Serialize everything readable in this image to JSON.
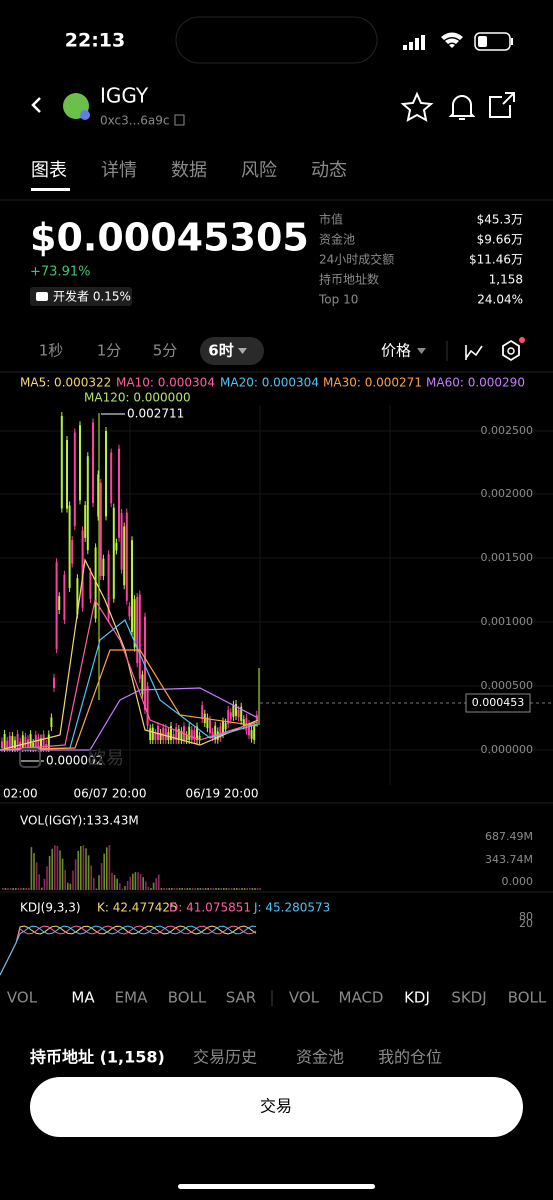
{
  "status": {
    "time": "22:13"
  },
  "header": {
    "name": "IGGY",
    "address": "0xc3...6a9c"
  },
  "tabs": [
    "图表",
    "详情",
    "数据",
    "风险",
    "动态"
  ],
  "price": {
    "value": "$0.00045305",
    "change": "+73.91%",
    "developer": "开发者 0.15%"
  },
  "stats": [
    [
      "市值",
      "$45.3万"
    ],
    [
      "资金池",
      "$9.66万"
    ],
    [
      "24小时成交额",
      "$11.46万"
    ],
    [
      "持币地址数",
      "1,158"
    ],
    [
      "Top 10",
      "24.04%"
    ]
  ],
  "intervals": [
    "1秒",
    "1分",
    "5分",
    "6时"
  ],
  "price_selector": "价格",
  "ma": [
    {
      "label": "MA5: 0.000322",
      "color": "#f5d76e"
    },
    {
      "label": "MA10: 0.000304",
      "color": "#ff5fa2"
    },
    {
      "label": "MA20: 0.000304",
      "color": "#4fc3f7"
    },
    {
      "label": "MA30: 0.000271",
      "color": "#ff9f43"
    },
    {
      "label": "MA60: 0.000290",
      "color": "#c77dff"
    },
    {
      "label": "MA120: 0.000000",
      "color": "#b6e36b"
    }
  ],
  "chart": {
    "y_labels": [
      "0.002500",
      "0.002000",
      "0.001500",
      "0.001000",
      "0.000500",
      "0.000000"
    ],
    "high": "0.002711",
    "low": "0.000002",
    "current": "0.000453",
    "x_labels": [
      "02:00",
      "06/07 20:00",
      "06/19 20:00"
    ],
    "watermark": "欧易"
  },
  "volume": {
    "label": "VOL(IGGY):133.43M",
    "y_labels": [
      "687.49M",
      "343.74M",
      "0.000"
    ]
  },
  "kdj": {
    "label": "KDJ(9,3,3)",
    "k": "K: 42.477425",
    "d": "D: 41.075851",
    "j": "J: 45.280573",
    "y_labels": [
      "80",
      "20"
    ]
  },
  "indicators": {
    "main": [
      "VOL",
      "MA",
      "EMA",
      "BOLL",
      "SAR"
    ],
    "sub": [
      "VOL",
      "MACD",
      "KDJ",
      "SKDJ",
      "BOLL"
    ]
  },
  "bottom_tabs": [
    "持币地址 (1,158)",
    "交易历史",
    "资金池",
    "我的仓位"
  ],
  "trade_button": "交易"
}
